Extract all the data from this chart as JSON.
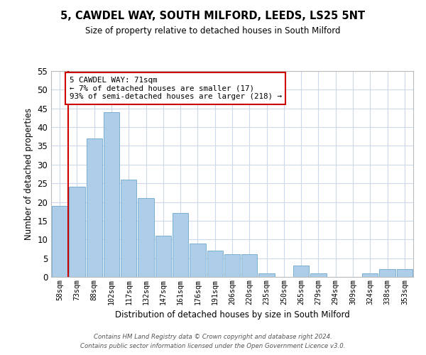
{
  "title": "5, CAWDEL WAY, SOUTH MILFORD, LEEDS, LS25 5NT",
  "subtitle": "Size of property relative to detached houses in South Milford",
  "xlabel": "Distribution of detached houses by size in South Milford",
  "ylabel": "Number of detached properties",
  "bin_labels": [
    "58sqm",
    "73sqm",
    "88sqm",
    "102sqm",
    "117sqm",
    "132sqm",
    "147sqm",
    "161sqm",
    "176sqm",
    "191sqm",
    "206sqm",
    "220sqm",
    "235sqm",
    "250sqm",
    "265sqm",
    "279sqm",
    "294sqm",
    "309sqm",
    "324sqm",
    "338sqm",
    "353sqm"
  ],
  "bar_heights": [
    19,
    24,
    37,
    44,
    26,
    21,
    11,
    17,
    9,
    7,
    6,
    6,
    1,
    0,
    3,
    1,
    0,
    0,
    1,
    2,
    2
  ],
  "bar_color": "#aecde8",
  "bar_edge_color": "#7aafd4",
  "highlight_line_color": "#cc0000",
  "ylim": [
    0,
    55
  ],
  "yticks": [
    0,
    5,
    10,
    15,
    20,
    25,
    30,
    35,
    40,
    45,
    50,
    55
  ],
  "annotation_line1": "5 CAWDEL WAY: 71sqm",
  "annotation_line2": "← 7% of detached houses are smaller (17)",
  "annotation_line3": "93% of semi-detached houses are larger (218) →",
  "annotation_box_color": "#ffffff",
  "annotation_box_edgecolor": "#cc0000",
  "footer_line1": "Contains HM Land Registry data © Crown copyright and database right 2024.",
  "footer_line2": "Contains public sector information licensed under the Open Government Licence v3.0.",
  "background_color": "#ffffff",
  "grid_color": "#cdd8ea"
}
